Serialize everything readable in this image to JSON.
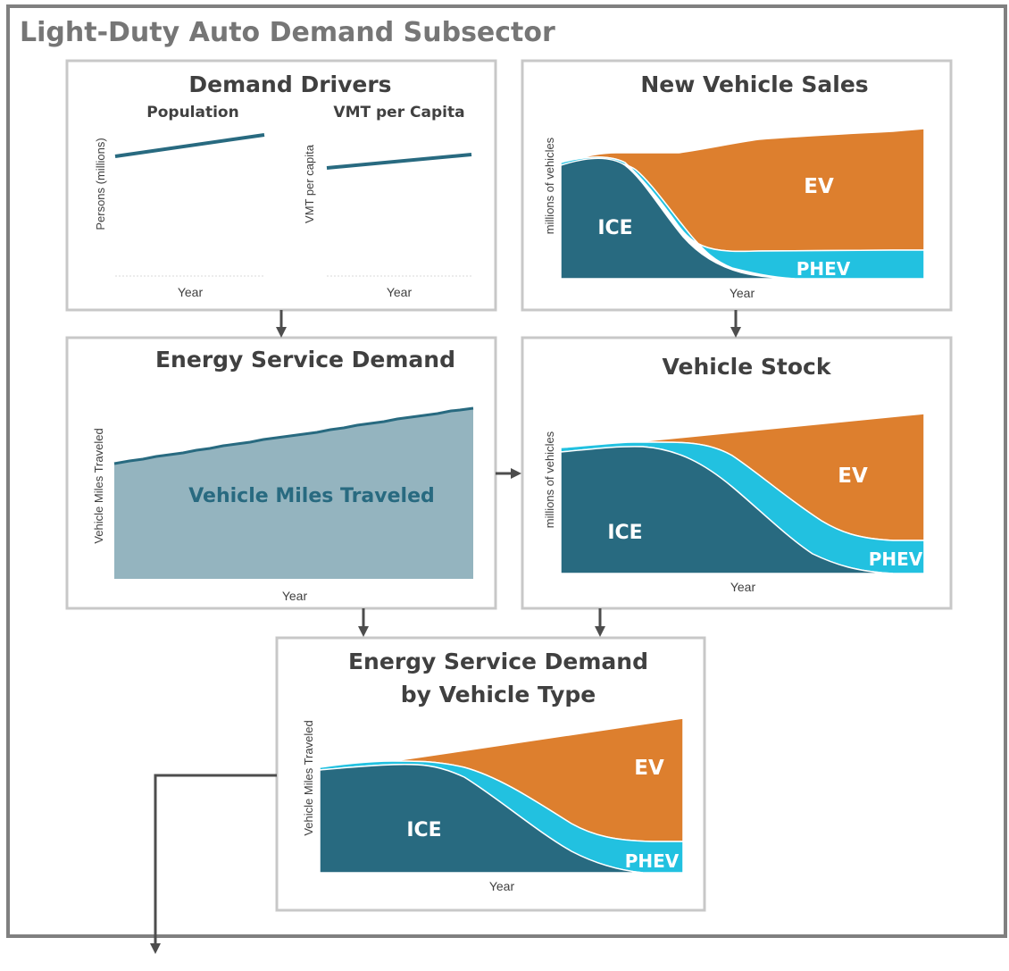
{
  "title": "Light-Duty Auto Demand Subsector",
  "colors": {
    "ice": "#286a80",
    "phev": "#22c1e0",
    "ev": "#dd7f2e",
    "vmt_fill": "#94b4bf",
    "vmt_line": "#286a80",
    "frame": "#808080",
    "panel_border": "#c8c8c8",
    "arrow": "#4d4d4d"
  },
  "panels": {
    "demand_drivers": {
      "title": "Demand Drivers",
      "population": {
        "title": "Population",
        "ylabel": "Persons (millions)",
        "xlabel": "Year"
      },
      "vmt_per_capita": {
        "title": "VMT per Capita",
        "ylabel": "VMT per capita",
        "xlabel": "Year"
      }
    },
    "new_vehicle_sales": {
      "title": "New Vehicle Sales",
      "ylabel": "millions of vehicles",
      "xlabel": "Year",
      "labels": {
        "ice": "ICE",
        "ev": "EV",
        "phev": "PHEV"
      }
    },
    "energy_service_demand": {
      "title": "Energy Service Demand",
      "ylabel": "Vehicle Miles Traveled",
      "xlabel": "Year",
      "area_label": "Vehicle Miles Traveled"
    },
    "vehicle_stock": {
      "title": "Vehicle Stock",
      "ylabel": "millions of vehicles",
      "xlabel": "Year",
      "labels": {
        "ice": "ICE",
        "ev": "EV",
        "phev": "PHEV"
      }
    },
    "esd_by_type": {
      "title_line1": "Energy Service Demand",
      "title_line2": "by Vehicle Type",
      "ylabel": "Vehicle Miles Traveled",
      "xlabel": "Year",
      "labels": {
        "ice": "ICE",
        "ev": "EV",
        "phev": "PHEV"
      }
    }
  }
}
